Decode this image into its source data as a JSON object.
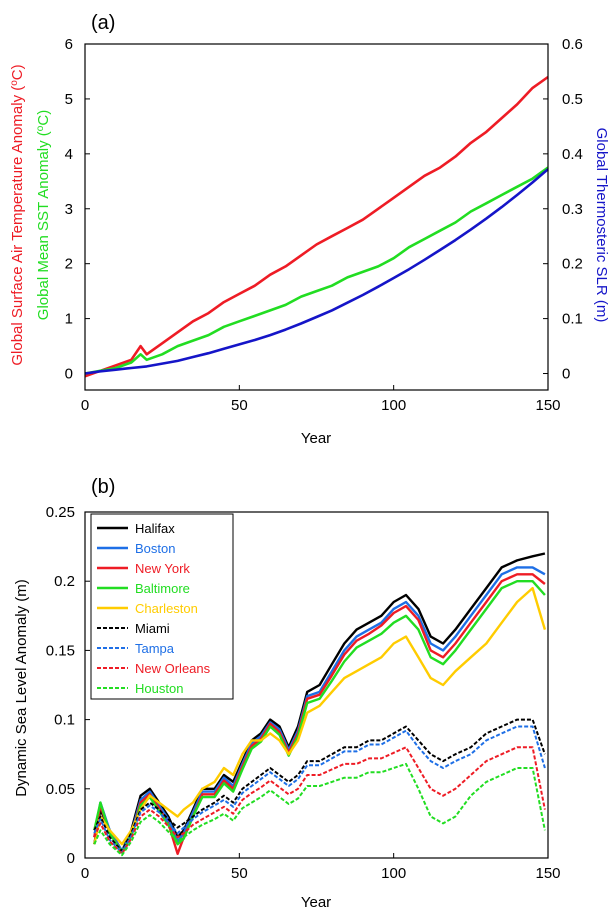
{
  "chart_data": [
    {
      "type": "line",
      "panel_label": "(a)",
      "xlabel": "Year",
      "ylabel_left_1": "Global Surface Air Temperature Anomaly (",
      "ylabel_left_1_unit": "C)",
      "ylabel_left_2": "Global Mean SST Anomaly (",
      "ylabel_left_2_unit": "C)",
      "degree_sign": "o",
      "ylabel_right": "Global Thermosteric SLR (m)",
      "xlim": [
        0,
        150
      ],
      "ylim_left": [
        -0.3,
        6
      ],
      "ylim_right": [
        -0.03,
        0.6
      ],
      "x_ticks": [
        0,
        50,
        100,
        150
      ],
      "x_tick_labels": [
        "0",
        "50",
        "100",
        "150"
      ],
      "y_left_ticks": [
        0,
        1,
        2,
        3,
        4,
        5,
        6
      ],
      "y_left_tick_labels": [
        "0",
        "1",
        "2",
        "3",
        "4",
        "5",
        "6"
      ],
      "y_right_ticks": [
        0,
        0.1,
        0.2,
        0.3,
        0.4,
        0.5,
        0.6
      ],
      "y_right_tick_labels": [
        "0",
        "0.1",
        "0.2",
        "0.3",
        "0.4",
        "0.5",
        "0.6"
      ],
      "grid": false,
      "colors": {
        "air": "#ee1c25",
        "sst": "#22dd22",
        "slr": "#1515c8"
      },
      "series": [
        {
          "axis": "left",
          "color": "#ee1c25",
          "x": [
            0,
            5,
            10,
            15,
            18,
            20,
            25,
            30,
            35,
            40,
            45,
            50,
            55,
            60,
            65,
            70,
            75,
            80,
            85,
            90,
            95,
            100,
            105,
            110,
            115,
            120,
            125,
            130,
            135,
            140,
            145,
            150
          ],
          "y": [
            -0.05,
            0.05,
            0.15,
            0.25,
            0.5,
            0.35,
            0.55,
            0.75,
            0.95,
            1.1,
            1.3,
            1.45,
            1.6,
            1.8,
            1.95,
            2.15,
            2.35,
            2.5,
            2.65,
            2.8,
            3.0,
            3.2,
            3.4,
            3.6,
            3.75,
            3.95,
            4.2,
            4.4,
            4.65,
            4.9,
            5.2,
            5.4
          ]
        },
        {
          "axis": "left",
          "color": "#22dd22",
          "x": [
            0,
            5,
            10,
            15,
            18,
            20,
            25,
            30,
            35,
            40,
            45,
            50,
            55,
            60,
            65,
            70,
            75,
            80,
            85,
            90,
            95,
            100,
            105,
            110,
            115,
            120,
            125,
            130,
            135,
            140,
            145,
            150
          ],
          "y": [
            0.0,
            0.05,
            0.1,
            0.2,
            0.35,
            0.25,
            0.35,
            0.5,
            0.6,
            0.7,
            0.85,
            0.95,
            1.05,
            1.15,
            1.25,
            1.4,
            1.5,
            1.6,
            1.75,
            1.85,
            1.95,
            2.1,
            2.3,
            2.45,
            2.6,
            2.75,
            2.95,
            3.1,
            3.25,
            3.4,
            3.55,
            3.75
          ]
        },
        {
          "axis": "right",
          "color": "#1515c8",
          "x": [
            0,
            5,
            10,
            15,
            20,
            25,
            30,
            35,
            40,
            45,
            50,
            55,
            60,
            65,
            70,
            75,
            80,
            85,
            90,
            95,
            100,
            105,
            110,
            115,
            120,
            125,
            130,
            135,
            140,
            145,
            150
          ],
          "y": [
            0.0,
            0.004,
            0.007,
            0.01,
            0.013,
            0.018,
            0.023,
            0.03,
            0.037,
            0.045,
            0.053,
            0.061,
            0.07,
            0.08,
            0.091,
            0.103,
            0.115,
            0.129,
            0.143,
            0.158,
            0.174,
            0.19,
            0.207,
            0.225,
            0.243,
            0.262,
            0.282,
            0.303,
            0.325,
            0.348,
            0.372
          ]
        }
      ]
    },
    {
      "type": "line",
      "panel_label": "(b)",
      "xlabel": "Year",
      "ylabel": "Dynamic Sea Level Anomaly (m)",
      "xlim": [
        0,
        150
      ],
      "ylim": [
        0,
        0.25
      ],
      "x_ticks": [
        0,
        50,
        100,
        150
      ],
      "x_tick_labels": [
        "0",
        "50",
        "100",
        "150"
      ],
      "y_ticks": [
        0,
        0.05,
        0.1,
        0.15,
        0.2,
        0.25
      ],
      "y_tick_labels": [
        "0",
        "0.05",
        "0.1",
        "0.15",
        "0.2",
        "0.25"
      ],
      "grid": false,
      "legend_position": "top-left",
      "x": [
        3,
        5,
        8,
        12,
        15,
        18,
        21,
        24,
        27,
        30,
        32,
        35,
        38,
        42,
        45,
        48,
        51,
        54,
        57,
        60,
        63,
        66,
        69,
        72,
        76,
        80,
        84,
        88,
        92,
        96,
        100,
        104,
        108,
        112,
        116,
        120,
        125,
        130,
        135,
        140,
        145,
        149
      ],
      "series": [
        {
          "name": "Halifax",
          "color": "#000000",
          "dashed": false,
          "y": [
            0.01,
            0.035,
            0.02,
            0.005,
            0.02,
            0.045,
            0.05,
            0.04,
            0.03,
            0.015,
            0.02,
            0.035,
            0.05,
            0.05,
            0.06,
            0.055,
            0.07,
            0.085,
            0.09,
            0.1,
            0.095,
            0.08,
            0.095,
            0.12,
            0.125,
            0.14,
            0.155,
            0.165,
            0.17,
            0.175,
            0.185,
            0.19,
            0.18,
            0.16,
            0.155,
            0.165,
            0.18,
            0.195,
            0.21,
            0.215,
            0.218,
            0.22
          ]
        },
        {
          "name": "Boston",
          "color": "#1e6fe6",
          "dashed": false,
          "y": [
            0.015,
            0.04,
            0.02,
            0.005,
            0.018,
            0.042,
            0.048,
            0.038,
            0.028,
            0.012,
            0.018,
            0.033,
            0.048,
            0.048,
            0.058,
            0.052,
            0.068,
            0.083,
            0.088,
            0.098,
            0.093,
            0.078,
            0.092,
            0.117,
            0.12,
            0.135,
            0.15,
            0.16,
            0.165,
            0.17,
            0.18,
            0.185,
            0.175,
            0.155,
            0.15,
            0.16,
            0.175,
            0.19,
            0.205,
            0.21,
            0.21,
            0.205
          ]
        },
        {
          "name": "New York",
          "color": "#ee1c25",
          "dashed": false,
          "y": [
            0.015,
            0.038,
            0.018,
            0.004,
            0.016,
            0.04,
            0.046,
            0.036,
            0.025,
            0.003,
            0.015,
            0.03,
            0.046,
            0.046,
            0.056,
            0.05,
            0.066,
            0.081,
            0.086,
            0.097,
            0.091,
            0.076,
            0.09,
            0.115,
            0.118,
            0.132,
            0.147,
            0.157,
            0.162,
            0.168,
            0.177,
            0.182,
            0.172,
            0.15,
            0.145,
            0.155,
            0.17,
            0.185,
            0.2,
            0.205,
            0.205,
            0.198
          ]
        },
        {
          "name": "Baltimore",
          "color": "#22dd22",
          "dashed": false,
          "y": [
            0.02,
            0.04,
            0.018,
            0.004,
            0.016,
            0.038,
            0.044,
            0.034,
            0.024,
            0.01,
            0.014,
            0.03,
            0.044,
            0.044,
            0.054,
            0.048,
            0.064,
            0.079,
            0.084,
            0.095,
            0.089,
            0.074,
            0.088,
            0.112,
            0.115,
            0.128,
            0.142,
            0.152,
            0.157,
            0.162,
            0.17,
            0.175,
            0.165,
            0.145,
            0.14,
            0.15,
            0.165,
            0.18,
            0.195,
            0.2,
            0.2,
            0.19
          ]
        },
        {
          "name": "Charleston",
          "color": "#ffcc00",
          "dashed": false,
          "y": [
            0.01,
            0.03,
            0.02,
            0.01,
            0.02,
            0.035,
            0.045,
            0.04,
            0.035,
            0.03,
            0.035,
            0.04,
            0.05,
            0.055,
            0.065,
            0.06,
            0.075,
            0.085,
            0.085,
            0.09,
            0.085,
            0.075,
            0.085,
            0.105,
            0.11,
            0.12,
            0.13,
            0.135,
            0.14,
            0.145,
            0.155,
            0.16,
            0.145,
            0.13,
            0.125,
            0.135,
            0.145,
            0.155,
            0.17,
            0.185,
            0.195,
            0.165
          ]
        },
        {
          "name": "Miami",
          "color": "#000000",
          "dashed": true,
          "y": [
            0.02,
            0.03,
            0.015,
            0.005,
            0.018,
            0.035,
            0.04,
            0.035,
            0.028,
            0.022,
            0.025,
            0.03,
            0.035,
            0.04,
            0.045,
            0.04,
            0.05,
            0.055,
            0.06,
            0.065,
            0.06,
            0.055,
            0.06,
            0.07,
            0.07,
            0.075,
            0.08,
            0.08,
            0.085,
            0.085,
            0.09,
            0.095,
            0.085,
            0.075,
            0.07,
            0.075,
            0.08,
            0.09,
            0.095,
            0.1,
            0.1,
            0.075
          ]
        },
        {
          "name": "Tampa",
          "color": "#1e6fe6",
          "dashed": true,
          "y": [
            0.018,
            0.028,
            0.013,
            0.004,
            0.016,
            0.033,
            0.038,
            0.033,
            0.026,
            0.018,
            0.022,
            0.028,
            0.033,
            0.038,
            0.042,
            0.037,
            0.047,
            0.052,
            0.057,
            0.062,
            0.057,
            0.052,
            0.057,
            0.067,
            0.067,
            0.072,
            0.077,
            0.077,
            0.082,
            0.082,
            0.087,
            0.092,
            0.08,
            0.07,
            0.065,
            0.07,
            0.075,
            0.085,
            0.09,
            0.095,
            0.095,
            0.065
          ]
        },
        {
          "name": "New Orleans",
          "color": "#ee1c25",
          "dashed": true,
          "y": [
            0.015,
            0.025,
            0.012,
            0.003,
            0.014,
            0.03,
            0.035,
            0.03,
            0.023,
            0.015,
            0.018,
            0.024,
            0.028,
            0.033,
            0.037,
            0.032,
            0.042,
            0.047,
            0.051,
            0.056,
            0.051,
            0.046,
            0.05,
            0.06,
            0.06,
            0.064,
            0.068,
            0.068,
            0.072,
            0.072,
            0.076,
            0.08,
            0.065,
            0.05,
            0.045,
            0.05,
            0.06,
            0.07,
            0.075,
            0.08,
            0.08,
            0.035
          ]
        },
        {
          "name": "Houston",
          "color": "#22dd22",
          "dashed": true,
          "y": [
            0.01,
            0.02,
            0.01,
            0.002,
            0.012,
            0.026,
            0.031,
            0.026,
            0.019,
            0.012,
            0.015,
            0.02,
            0.024,
            0.028,
            0.032,
            0.027,
            0.036,
            0.04,
            0.044,
            0.049,
            0.044,
            0.039,
            0.043,
            0.052,
            0.052,
            0.055,
            0.058,
            0.058,
            0.062,
            0.062,
            0.065,
            0.068,
            0.05,
            0.03,
            0.025,
            0.03,
            0.045,
            0.055,
            0.06,
            0.065,
            0.065,
            0.02
          ]
        }
      ]
    }
  ]
}
